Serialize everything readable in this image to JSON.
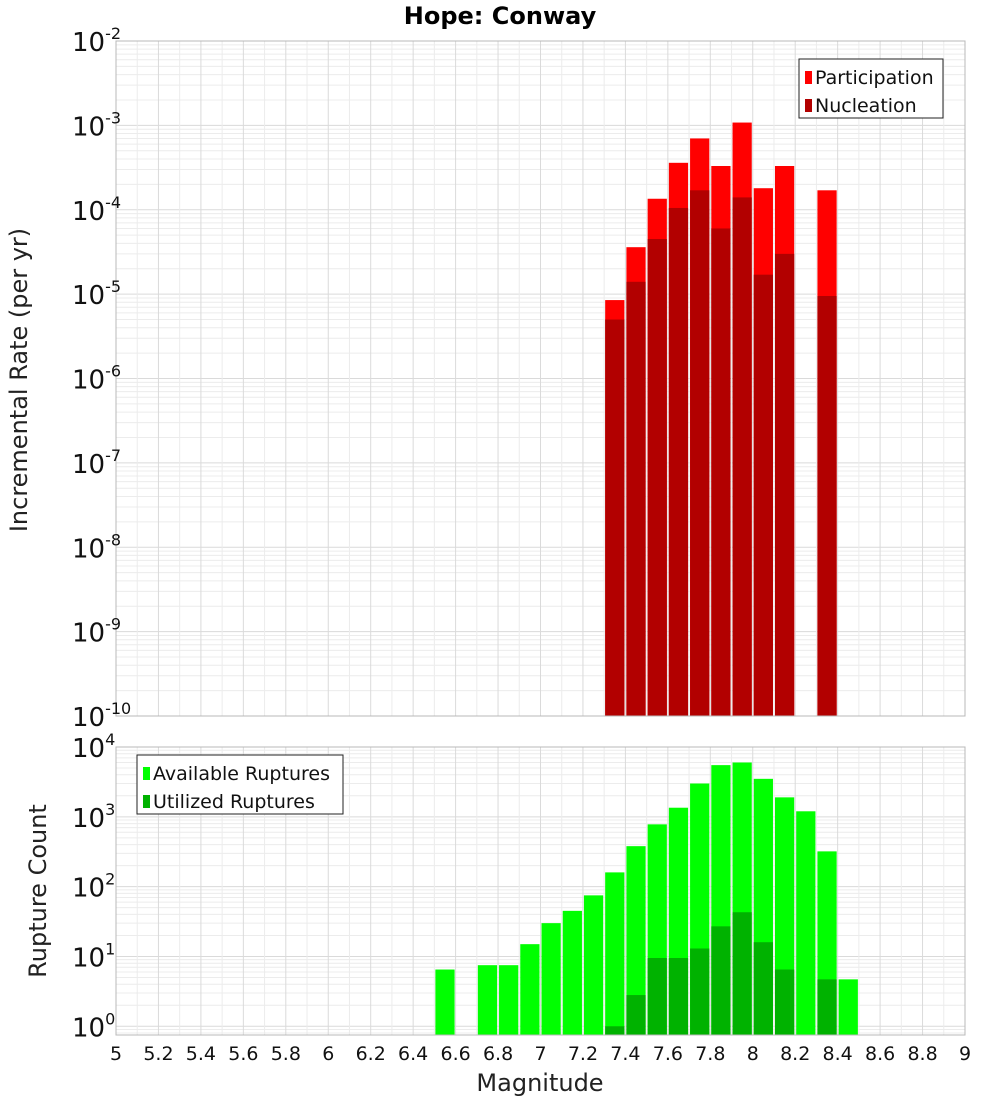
{
  "chart_data": [
    {
      "type": "bar",
      "title": "Hope: Conway",
      "ylabel": "Incremental Rate (per yr)",
      "yscale": "log",
      "ylim": [
        1e-10,
        0.01
      ],
      "xlim": [
        5,
        9
      ],
      "bar_width": 0.1,
      "legend_placement": "top-right",
      "grid": true,
      "y_ticks": [
        {
          "base": "10",
          "exp": "-10"
        },
        {
          "base": "10",
          "exp": "-9"
        },
        {
          "base": "10",
          "exp": "-8"
        },
        {
          "base": "10",
          "exp": "-7"
        },
        {
          "base": "10",
          "exp": "-6"
        },
        {
          "base": "10",
          "exp": "-5"
        },
        {
          "base": "10",
          "exp": "-4"
        },
        {
          "base": "10",
          "exp": "-3"
        },
        {
          "base": "10",
          "exp": "-2"
        }
      ],
      "series": [
        {
          "name": "Participation",
          "color": "#ff0000",
          "x": [
            7.35,
            7.45,
            7.55,
            7.65,
            7.75,
            7.85,
            7.95,
            8.05,
            8.15,
            8.35
          ],
          "values": [
            8.5e-06,
            3.6e-05,
            0.000135,
            0.00036,
            0.0007,
            0.00033,
            0.00108,
            0.00018,
            0.00033,
            0.00017
          ]
        },
        {
          "name": "Nucleation",
          "color": "#b20000",
          "x": [
            7.35,
            7.45,
            7.55,
            7.65,
            7.75,
            7.85,
            7.95,
            8.05,
            8.15,
            8.35
          ],
          "values": [
            5e-06,
            1.4e-05,
            4.5e-05,
            0.000105,
            0.00017,
            6e-05,
            0.00014,
            1.7e-05,
            3e-05,
            9.5e-06
          ]
        }
      ]
    },
    {
      "type": "bar",
      "xlabel": "Magnitude",
      "ylabel": "Rupture Count",
      "yscale": "log",
      "ylim": [
        0.75,
        10000
      ],
      "xlim": [
        5,
        9
      ],
      "bar_width": 0.1,
      "legend_placement": "top-left",
      "grid": true,
      "y_ticks": [
        {
          "base": "10",
          "exp": "0"
        },
        {
          "base": "10",
          "exp": "1"
        },
        {
          "base": "10",
          "exp": "2"
        },
        {
          "base": "10",
          "exp": "3"
        },
        {
          "base": "10",
          "exp": "4"
        }
      ],
      "x_ticks": [
        "5",
        "5.2",
        "5.4",
        "5.6",
        "5.8",
        "6",
        "6.2",
        "6.4",
        "6.6",
        "6.8",
        "7",
        "7.2",
        "7.4",
        "7.6",
        "7.8",
        "8",
        "8.2",
        "8.4",
        "8.6",
        "8.8",
        "9"
      ],
      "series": [
        {
          "name": "Available Ruptures",
          "color": "#00ff00",
          "x": [
            6.55,
            6.75,
            6.85,
            6.95,
            7.05,
            7.15,
            7.25,
            7.35,
            7.45,
            7.55,
            7.65,
            7.75,
            7.85,
            7.95,
            8.05,
            8.15,
            8.25,
            8.35,
            8.45
          ],
          "values": [
            6.5,
            7.5,
            7.5,
            15,
            30,
            45,
            75,
            160,
            380,
            780,
            1350,
            3000,
            5500,
            6000,
            3500,
            1900,
            1200,
            320,
            4.7
          ]
        },
        {
          "name": "Utilized Ruptures",
          "color": "#00b200",
          "x": [
            7.35,
            7.45,
            7.55,
            7.65,
            7.75,
            7.85,
            7.95,
            8.05,
            8.15,
            8.35
          ],
          "values": [
            1,
            2.8,
            9.5,
            9.5,
            13,
            27,
            43,
            16,
            6.5,
            4.7
          ]
        }
      ]
    }
  ]
}
